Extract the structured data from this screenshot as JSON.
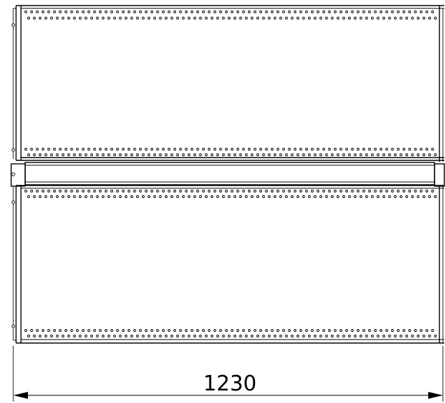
{
  "drawing": {
    "dimension_label": "1230"
  }
}
